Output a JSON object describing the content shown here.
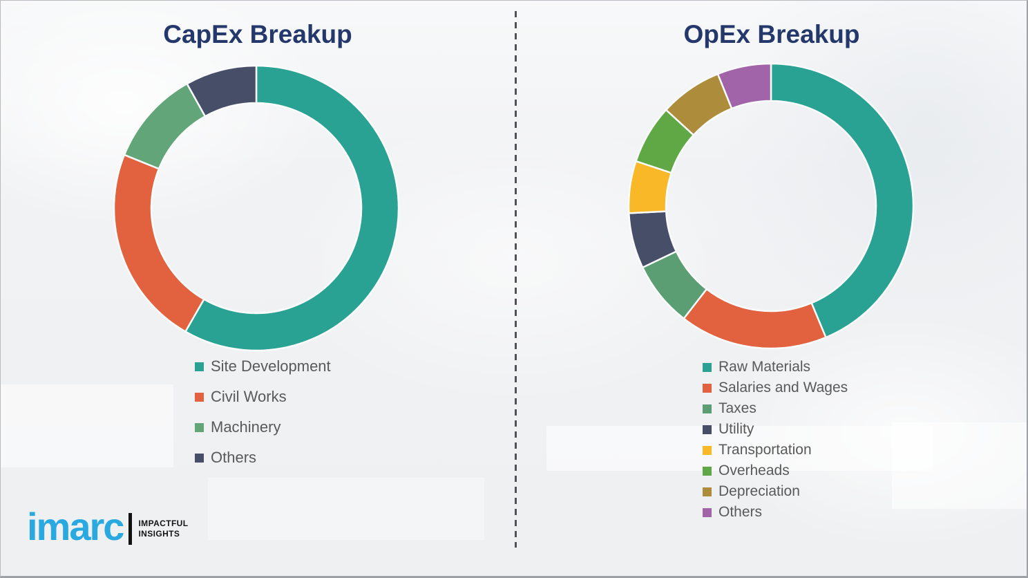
{
  "page": {
    "background_color": "#f1f2f4",
    "border_color": "#9ea1a5",
    "divider_style": "vertical dashed line between panels",
    "divider_color": "#4f5154"
  },
  "brand": {
    "logo_text": "imarc",
    "logo_color": "#2aa9e0",
    "tagline_line1": "IMPACTFUL",
    "tagline_line2": "INSIGHTS",
    "tagline_color": "#141414"
  },
  "chart_data": [
    {
      "type": "pie",
      "subtype": "donut",
      "title": "CapEx Breakup",
      "title_color": "#24386b",
      "categories": [
        "Site Development",
        "Civil Works",
        "Machinery",
        "Others"
      ],
      "values": [
        58.3,
        22.8,
        10.8,
        8.1
      ],
      "values_are_percent_estimated_from_arc_angles": true,
      "colors": [
        "#2aa293",
        "#e2613e",
        "#62a578",
        "#474e68"
      ],
      "start_angle_deg": 0,
      "direction": "clockwise",
      "legend_position": "below",
      "legend_text_color": "#595959",
      "data_labels": "none"
    },
    {
      "type": "pie",
      "subtype": "donut",
      "title": "OpEx Breakup",
      "title_color": "#24386b",
      "categories": [
        "Raw Materials",
        "Salaries and Wages",
        "Taxes",
        "Utility",
        "Transportation",
        "Overheads",
        "Depreciation",
        "Others"
      ],
      "values": [
        43.7,
        16.8,
        7.4,
        6.3,
        5.9,
        6.7,
        7.1,
        6.1
      ],
      "values_are_percent_estimated_from_arc_angles": true,
      "colors": [
        "#2aa293",
        "#e2613e",
        "#5b9e74",
        "#474e68",
        "#f8b827",
        "#5fa845",
        "#ad8c3c",
        "#a164a8"
      ],
      "start_angle_deg": 0,
      "direction": "clockwise",
      "legend_position": "below",
      "legend_text_color": "#595959",
      "data_labels": "none"
    }
  ]
}
